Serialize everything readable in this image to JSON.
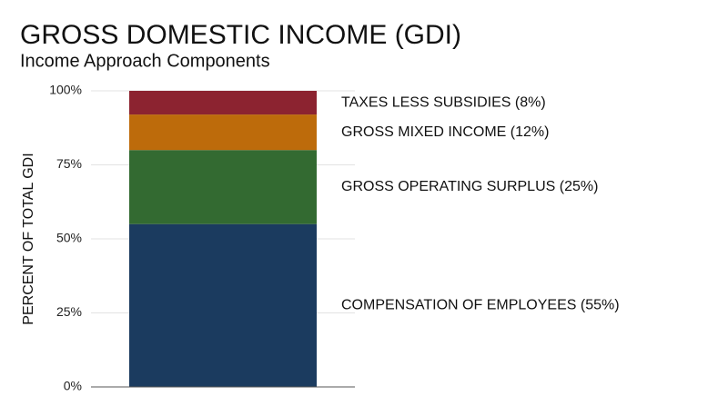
{
  "chart_data": {
    "type": "bar",
    "stacked": true,
    "title": "GROSS DOMESTIC INCOME (GDI)",
    "subtitle": "Income Approach Components",
    "y_label": "PERCENT OF TOTAL GDI",
    "ylim": [
      0,
      100
    ],
    "yticks": [
      {
        "value": 0,
        "label": "0%"
      },
      {
        "value": 25,
        "label": "25%"
      },
      {
        "value": 50,
        "label": "50%"
      },
      {
        "value": 75,
        "label": "75%"
      },
      {
        "value": 100,
        "label": "100%"
      }
    ],
    "grid": true,
    "series": [
      {
        "name": "COMPENSATION OF EMPLOYEES (55%)",
        "color": "#1b3b5f",
        "values": [
          55
        ]
      },
      {
        "name": "GROSS OPERATING SURPLUS (25%)",
        "color": "#336a31",
        "values": [
          25
        ]
      },
      {
        "name": "GROSS MIXED INCOME (12%)",
        "color": "#bd6b0b",
        "values": [
          12
        ]
      },
      {
        "name": "TAXES LESS SUBSIDIES (8%)",
        "color": "#8c2330",
        "values": [
          8
        ]
      }
    ]
  }
}
